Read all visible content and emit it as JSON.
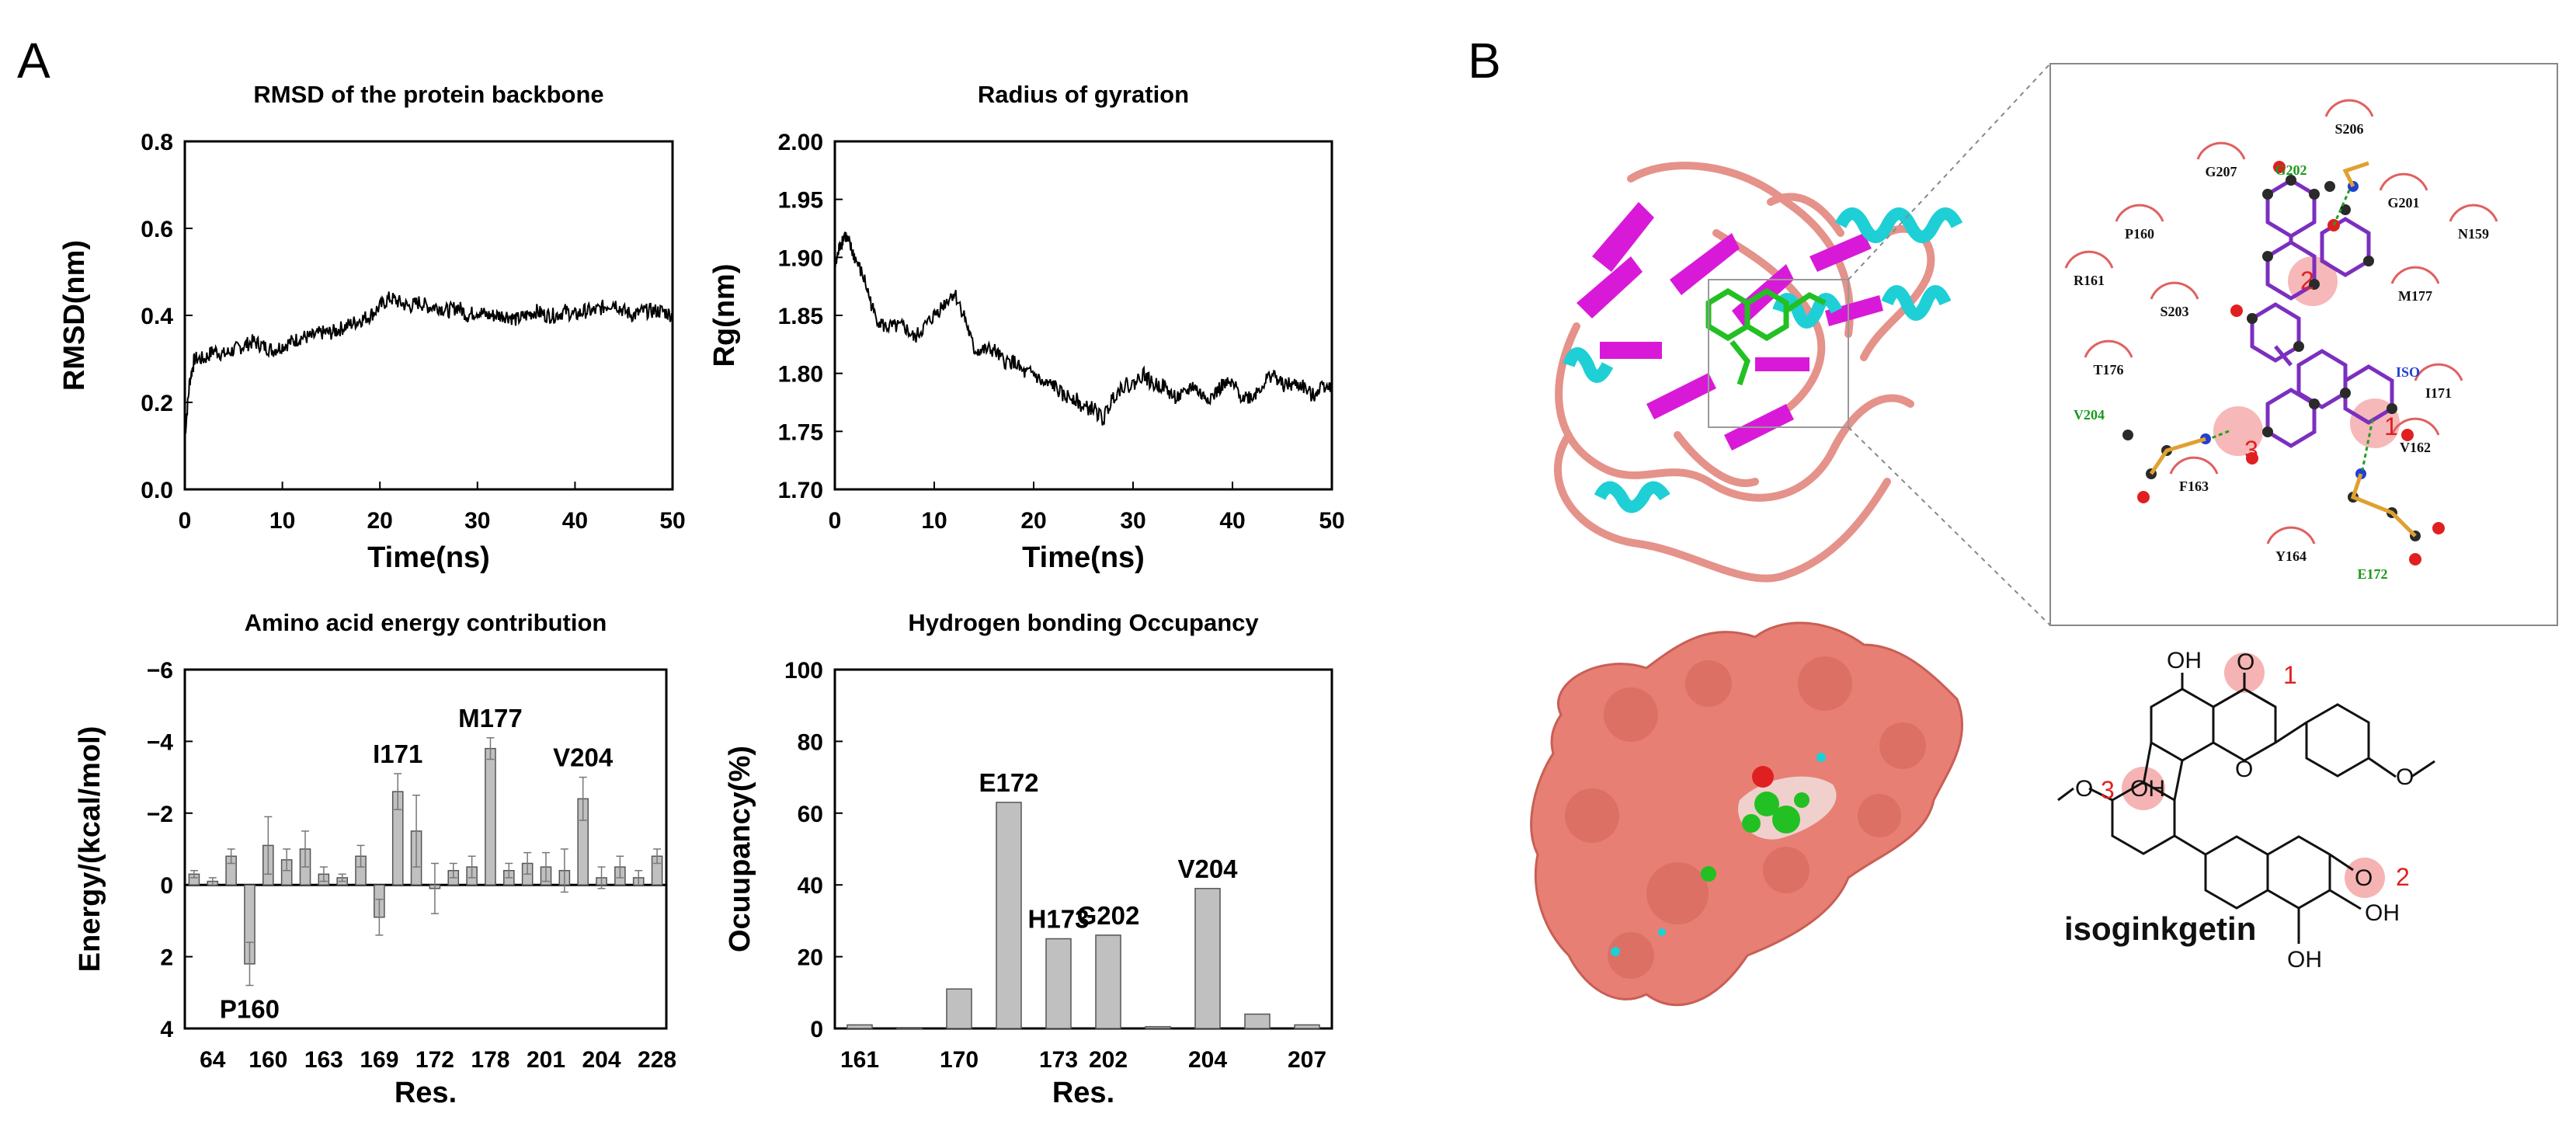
{
  "panels": {
    "a": "A",
    "b": "B"
  },
  "chart_data": [
    {
      "type": "line",
      "title": "RMSD of the protein backbone",
      "xlabel": "Time(ns)",
      "ylabel": "RMSD(nm)",
      "xlim": [
        0,
        50
      ],
      "ylim": [
        0.0,
        0.8
      ],
      "xticks": [
        "0",
        "10",
        "20",
        "30",
        "40",
        "50"
      ],
      "yticks": [
        "0.0",
        "0.2",
        "0.4",
        "0.6",
        "0.8"
      ],
      "series": [
        {
          "x": [
            0,
            0.5,
            1,
            2,
            3,
            4,
            5,
            6,
            7,
            8,
            9,
            10,
            11,
            12,
            13,
            14,
            15,
            16,
            17,
            18,
            19,
            20,
            21,
            22,
            23,
            24,
            25,
            26,
            27,
            28,
            29,
            30,
            31,
            32,
            33,
            34,
            35,
            36,
            37,
            38,
            39,
            40,
            41,
            42,
            43,
            44,
            45,
            46,
            47,
            48,
            49,
            50
          ],
          "y": [
            0.12,
            0.25,
            0.3,
            0.3,
            0.32,
            0.31,
            0.32,
            0.33,
            0.34,
            0.33,
            0.32,
            0.33,
            0.34,
            0.35,
            0.35,
            0.36,
            0.36,
            0.37,
            0.38,
            0.39,
            0.4,
            0.42,
            0.44,
            0.43,
            0.42,
            0.43,
            0.42,
            0.42,
            0.41,
            0.42,
            0.4,
            0.41,
            0.4,
            0.4,
            0.4,
            0.39,
            0.4,
            0.41,
            0.4,
            0.4,
            0.41,
            0.4,
            0.41,
            0.41,
            0.42,
            0.43,
            0.41,
            0.4,
            0.41,
            0.41,
            0.41,
            0.4
          ]
        }
      ]
    },
    {
      "type": "line",
      "title": "Radius of gyration",
      "xlabel": "Time(ns)",
      "ylabel": "Rg(nm)",
      "xlim": [
        0,
        50
      ],
      "ylim": [
        1.7,
        2.0
      ],
      "xticks": [
        "0",
        "10",
        "20",
        "30",
        "40",
        "50"
      ],
      "yticks": [
        "1.70",
        "1.75",
        "1.80",
        "1.85",
        "1.90",
        "1.95",
        "2.00"
      ],
      "series": [
        {
          "x": [
            0,
            0.5,
            1,
            1.5,
            2,
            3,
            4,
            5,
            6,
            7,
            8,
            9,
            10,
            11,
            12,
            13,
            14,
            15,
            16,
            17,
            18,
            19,
            20,
            21,
            22,
            23,
            24,
            25,
            26,
            27,
            28,
            29,
            30,
            31,
            32,
            33,
            34,
            35,
            36,
            37,
            38,
            39,
            40,
            41,
            42,
            43,
            44,
            45,
            46,
            47,
            48,
            49,
            50
          ],
          "y": [
            1.89,
            1.91,
            1.92,
            1.91,
            1.9,
            1.88,
            1.85,
            1.84,
            1.84,
            1.84,
            1.83,
            1.84,
            1.85,
            1.86,
            1.87,
            1.85,
            1.82,
            1.82,
            1.82,
            1.81,
            1.81,
            1.8,
            1.8,
            1.79,
            1.79,
            1.78,
            1.78,
            1.77,
            1.77,
            1.76,
            1.78,
            1.79,
            1.79,
            1.8,
            1.79,
            1.79,
            1.78,
            1.78,
            1.79,
            1.78,
            1.78,
            1.79,
            1.79,
            1.78,
            1.78,
            1.79,
            1.8,
            1.79,
            1.79,
            1.79,
            1.78,
            1.79,
            1.79
          ]
        }
      ]
    },
    {
      "type": "bar",
      "title": "Amino acid energy contribution",
      "xlabel": "Res.",
      "ylabel": "Energy/(kcal/mol)",
      "ylim": [
        4,
        -6
      ],
      "yticks": [
        "−6",
        "−4",
        "−2",
        "0",
        "2",
        "4"
      ],
      "xticks": [
        "64",
        "160",
        "163",
        "169",
        "172",
        "178",
        "201",
        "204",
        "228"
      ],
      "values": [
        -0.3,
        -0.1,
        -0.8,
        2.2,
        -1.1,
        -0.7,
        -1.0,
        -0.3,
        -0.2,
        -0.8,
        0.9,
        -2.6,
        -1.5,
        0.1,
        -0.4,
        -0.5,
        -3.8,
        -0.4,
        -0.6,
        -0.5,
        -0.4,
        -2.4,
        -0.2,
        -0.5,
        -0.2,
        -0.8
      ],
      "errors": [
        0.1,
        0.1,
        0.2,
        0.6,
        0.8,
        0.3,
        0.5,
        0.2,
        0.1,
        0.3,
        0.5,
        0.5,
        1.0,
        0.7,
        0.2,
        0.3,
        0.3,
        0.2,
        0.3,
        0.4,
        0.6,
        0.6,
        0.3,
        0.3,
        0.2,
        0.2
      ],
      "annotations": [
        {
          "label": "P160",
          "bar": 3
        },
        {
          "label": "I171",
          "bar": 11
        },
        {
          "label": "M177",
          "bar": 16
        },
        {
          "label": "V204",
          "bar": 21
        }
      ]
    },
    {
      "type": "bar",
      "title": "Hydrogen bonding Occupancy",
      "xlabel": "Res.",
      "ylabel": "Ocuupancy(%)",
      "ylim": [
        0,
        100
      ],
      "yticks": [
        "0",
        "20",
        "40",
        "60",
        "80",
        "100"
      ],
      "categories": [
        "161",
        "",
        "170",
        "",
        "173",
        "202",
        "",
        "204",
        "",
        "207"
      ],
      "values": [
        1,
        0,
        11,
        63,
        25,
        26,
        0.5,
        39,
        4,
        1
      ],
      "annotations": [
        {
          "label": "E172",
          "bar": 3
        },
        {
          "label": "H173",
          "bar": 4
        },
        {
          "label": "G202",
          "bar": 5
        },
        {
          "label": "V204",
          "bar": 7
        }
      ]
    }
  ],
  "ligplot": {
    "hydrophobic": [
      "S206",
      "G207",
      "G201",
      "N159",
      "P160",
      "R161",
      "S203",
      "M177",
      "T176",
      "I171",
      "V162",
      "F163",
      "Y164"
    ],
    "hbond_residues": [
      "G202",
      "V204",
      "E172"
    ],
    "ligand": "ISO",
    "markers": [
      "1",
      "2",
      "3"
    ]
  },
  "structure": {
    "name": "isoginkgetin",
    "groups": [
      "OH",
      "O",
      "OH",
      "O",
      "O",
      "O",
      "O",
      "OH",
      "OH"
    ],
    "markers": [
      "1",
      "2",
      "3"
    ]
  },
  "colors": {
    "line": "#000000",
    "bar": "#c0c0c0",
    "ribbon_sheet": "#d81ad8",
    "ribbon_helix": "#1ecfd6",
    "ribbon_coil": "#e4928a",
    "surface": "#e87f74",
    "ligand": "#22c022",
    "marker": "#f4a6a6",
    "label_red": "#e02020"
  }
}
